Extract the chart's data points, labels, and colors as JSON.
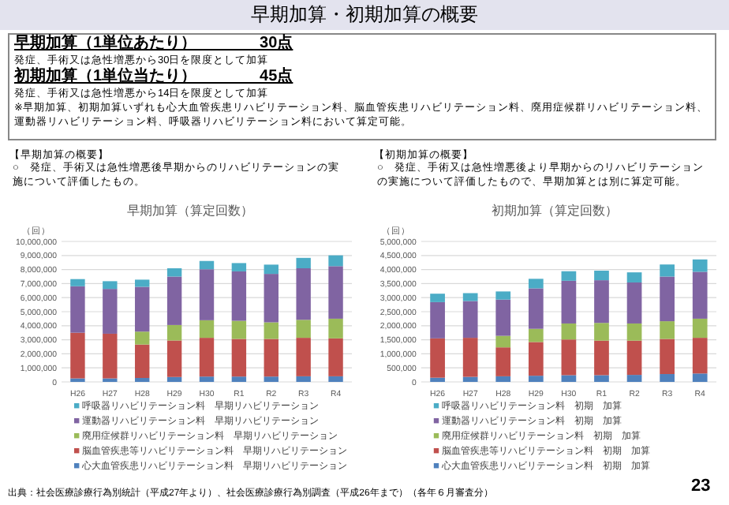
{
  "chart_data": [
    {
      "type": "other",
      "title": "早期加算・初期加算の概要",
      "annotations": [
        "早期加算（1単位あたり）　　　　30点",
        "発症、手術又は急性増悪から30日を限度として加算",
        "初期加算（1単位当たり）　　　　45点",
        "発症、手術又は急性増悪から14日を限度として加算",
        "※早期加算、初期加算いずれも心大血管疾患リハビリテーション料、脳血管疾患リハビリテーション料、廃用症候群リハビリテーション料、運動器リハビリテーション料、呼吸器リハビリテーション料において算定可能。",
        "出典：社会医療診療行為別統計（平成27年より）、社会医療診療行為別調査（平成26年まで）（各年６月審査分）",
        "23"
      ]
    },
    {
      "type": "bar",
      "stacked": true,
      "title": "早期加算（算定回数）",
      "ylabel": "（回）",
      "annotations": [
        "【早期加算の概要】",
        "○　発症、手術又は急性増悪後早期からのリハビリテーションの実施について評価したもの。"
      ],
      "categories": [
        "H26",
        "H27",
        "H28",
        "H29",
        "H30",
        "R1",
        "R2",
        "R3",
        "R4"
      ],
      "series": [
        {
          "name": "心大血管疾患リハビリテーション料　早期リハビリテーション",
          "color": "#4f81bd",
          "values": [
            250000,
            250000,
            280000,
            350000,
            380000,
            380000,
            380000,
            400000,
            400000
          ]
        },
        {
          "name": "脳血管疾患等リハビリテーション料　早期リハビリテーション",
          "color": "#c0504d",
          "values": [
            3250000,
            3180000,
            2380000,
            2600000,
            2760000,
            2680000,
            2680000,
            2740000,
            2700000
          ]
        },
        {
          "name": "廃用症候群リハビリテーション料　早期リハビリテーション",
          "color": "#9bbb59",
          "values": [
            0,
            0,
            920000,
            1100000,
            1250000,
            1290000,
            1180000,
            1280000,
            1400000
          ]
        },
        {
          "name": "運動器リハビリテーション料　早期リハビリテーション",
          "color": "#8064a2",
          "values": [
            3310000,
            3190000,
            3190000,
            3450000,
            3630000,
            3520000,
            3450000,
            3670000,
            3740000
          ]
        },
        {
          "name": "呼吸器リハビリテーション料　早期リハビリテーション",
          "color": "#4bacc6",
          "values": [
            510000,
            550000,
            510000,
            590000,
            590000,
            590000,
            660000,
            740000,
            770000
          ]
        }
      ],
      "ylim": [
        0,
        10000000
      ],
      "yticks": [
        0,
        {
          "value": 1000000,
          "label": "1,000,000"
        },
        {
          "value": 2000000,
          "label": "2,000,000"
        },
        {
          "value": 3000000,
          "label": "3,000,000"
        },
        {
          "value": 4000000,
          "label": "4,000,000"
        },
        {
          "value": 5000000,
          "label": "5,000,000"
        },
        {
          "value": 6000000,
          "label": "6,000,000"
        },
        {
          "value": 7000000,
          "label": "7,000,000"
        },
        {
          "value": 8000000,
          "label": "8,000,000"
        },
        {
          "value": 9000000,
          "label": "9,000,000"
        },
        {
          "value": 10000000,
          "label": "10,000,000"
        }
      ],
      "grid": "y",
      "legend": "bottom"
    },
    {
      "type": "bar",
      "stacked": true,
      "title": "初期加算（算定回数）",
      "ylabel": "（回）",
      "annotations": [
        "【初期加算の概要】",
        "○　発症、手術又は急性増悪後より早期からのリハビリテーションの実施について評価したもので、早期加算とは別に算定可能。"
      ],
      "categories": [
        "H26",
        "H27",
        "H28",
        "H29",
        "H30",
        "R1",
        "R2",
        "R3",
        "R4"
      ],
      "series": [
        {
          "name": "心大血管疾患リハビリテーション料　初期　加算",
          "color": "#4f81bd",
          "values": [
            150000,
            180000,
            200000,
            220000,
            240000,
            240000,
            250000,
            280000,
            300000
          ]
        },
        {
          "name": "脳血管疾患等リハビリテーション料　初期　加算",
          "color": "#c0504d",
          "values": [
            1400000,
            1390000,
            1030000,
            1200000,
            1270000,
            1230000,
            1220000,
            1250000,
            1270000
          ]
        },
        {
          "name": "廃用症候群リハビリテーション料　初期　加算",
          "color": "#9bbb59",
          "values": [
            0,
            0,
            410000,
            470000,
            570000,
            630000,
            610000,
            630000,
            680000
          ]
        },
        {
          "name": "運動器リハビリテーション料　初期　加算",
          "color": "#8064a2",
          "values": [
            1290000,
            1310000,
            1290000,
            1440000,
            1520000,
            1520000,
            1460000,
            1590000,
            1670000
          ]
        },
        {
          "name": "呼吸器リハビリテーション料　初期　加算",
          "color": "#4bacc6",
          "values": [
            300000,
            280000,
            290000,
            340000,
            340000,
            340000,
            360000,
            430000,
            440000
          ]
        }
      ],
      "ylim": [
        0,
        5000000
      ],
      "yticks": [
        0,
        {
          "value": 500000,
          "label": "500,000"
        },
        {
          "value": 1000000,
          "label": "1,000,000"
        },
        {
          "value": 1500000,
          "label": "1,500,000"
        },
        {
          "value": 2000000,
          "label": "2,000,000"
        },
        {
          "value": 2500000,
          "label": "2,500,000"
        },
        {
          "value": 3000000,
          "label": "3,000,000"
        },
        {
          "value": 3500000,
          "label": "3,500,000"
        },
        {
          "value": 4000000,
          "label": "4,000,000"
        },
        {
          "value": 4500000,
          "label": "4,500,000"
        },
        {
          "value": 5000000,
          "label": "5,000,000"
        }
      ],
      "grid": "y",
      "legend": "bottom"
    }
  ]
}
